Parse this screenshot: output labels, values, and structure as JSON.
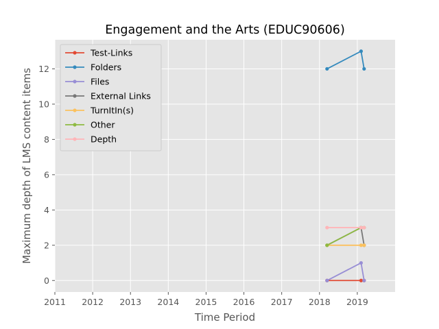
{
  "chart_data": {
    "type": "line",
    "title": "Engagement and the Arts (EDUC90606)",
    "xlabel": "Time Period",
    "ylabel": "Maximum depth of LMS content items",
    "xlim": [
      2011,
      2020
    ],
    "ylim": [
      -0.65,
      13.65
    ],
    "x_ticks": [
      2011,
      2012,
      2013,
      2014,
      2015,
      2016,
      2017,
      2018,
      2019
    ],
    "x_tick_labels": [
      "2011",
      "2012",
      "2013",
      "2014",
      "2015",
      "2016",
      "2017",
      "2018",
      "2019"
    ],
    "y_ticks": [
      0,
      2,
      4,
      6,
      8,
      10,
      12
    ],
    "y_tick_labels": [
      "0",
      "2",
      "4",
      "6",
      "8",
      "10",
      "12"
    ],
    "grid": true,
    "style": "ggplot",
    "legend_position": "upper-left",
    "series": [
      {
        "name": "Test-Links",
        "color": "#E24A33",
        "x": [
          2018.2,
          2019.1,
          2019.18
        ],
        "y": [
          0,
          0,
          0
        ]
      },
      {
        "name": "Folders",
        "color": "#348ABD",
        "x": [
          2018.2,
          2019.1,
          2019.18
        ],
        "y": [
          12,
          13,
          12
        ]
      },
      {
        "name": "Files",
        "color": "#988ED5",
        "x": [
          2018.2,
          2019.1,
          2019.18
        ],
        "y": [
          0,
          1,
          0
        ]
      },
      {
        "name": "External Links",
        "color": "#777777",
        "x": [
          2018.2,
          2019.1,
          2019.18
        ],
        "y": [
          2,
          3,
          2
        ]
      },
      {
        "name": "TurnItIn(s)",
        "color": "#FBC15E",
        "x": [
          2018.2,
          2019.1,
          2019.18
        ],
        "y": [
          2,
          2,
          2
        ]
      },
      {
        "name": "Other",
        "color": "#8EBA42",
        "x": [
          2018.2,
          2019.1,
          2019.18
        ],
        "y": [
          2,
          3,
          3
        ]
      },
      {
        "name": "Depth",
        "color": "#FFB5B8",
        "x": [
          2018.2,
          2019.1,
          2019.18
        ],
        "y": [
          3,
          3,
          3
        ]
      }
    ]
  }
}
